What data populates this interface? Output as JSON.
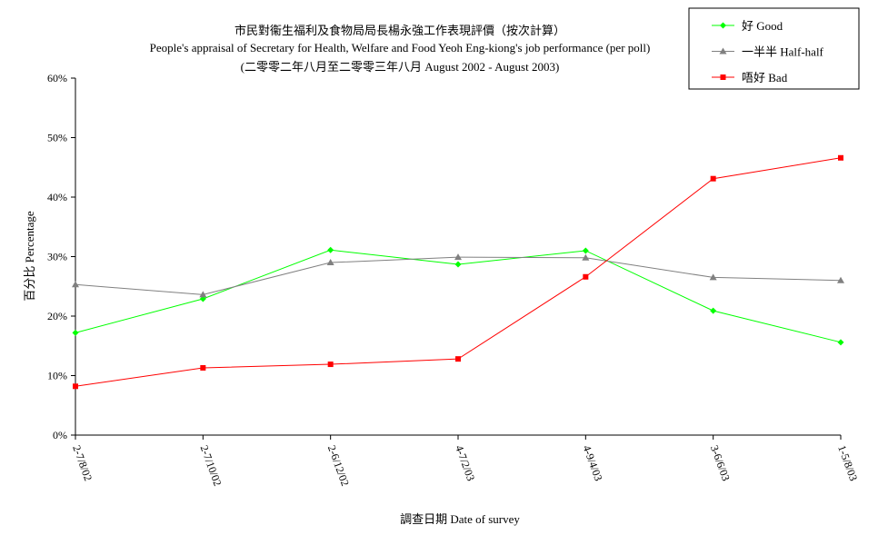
{
  "chart_data": {
    "type": "line",
    "title": [
      "市民對衞生福利及食物局局長楊永強工作表現評價（按次計算）",
      "People's appraisal of Secretary for Health, Welfare and Food Yeoh Eng-kiong's job performance (per poll)",
      "(二零零二年八月至二零零三年八月 August 2002 - August 2003)"
    ],
    "xlabel": "調查日期 Date of survey",
    "ylabel": "百分比 Percentage",
    "categories": [
      "2-7/8/02",
      "2-7/10/02",
      "2-6/12/02",
      "4-7/2/03",
      "4-9/4/03",
      "3-6/6/03",
      "1-5/8/03"
    ],
    "ylim": [
      0,
      60
    ],
    "yticks": [
      0,
      10,
      20,
      30,
      40,
      50,
      60
    ],
    "ytick_labels": [
      "0%",
      "10%",
      "20%",
      "30%",
      "40%",
      "50%",
      "60%"
    ],
    "grid": false,
    "legend_position": "top-right",
    "series": [
      {
        "name": "好 Good",
        "color": "#00ff00",
        "marker": "diamond",
        "values": [
          17.2,
          22.9,
          31.1,
          28.7,
          31.0,
          20.9,
          15.6
        ]
      },
      {
        "name": "一半半 Half-half",
        "color": "#808080",
        "marker": "triangle",
        "values": [
          25.3,
          23.6,
          29.0,
          29.9,
          29.8,
          26.5,
          26.0
        ]
      },
      {
        "name": "唔好 Bad",
        "color": "#ff0000",
        "marker": "square",
        "values": [
          8.2,
          11.3,
          11.9,
          12.8,
          26.6,
          43.1,
          46.6
        ]
      }
    ]
  }
}
